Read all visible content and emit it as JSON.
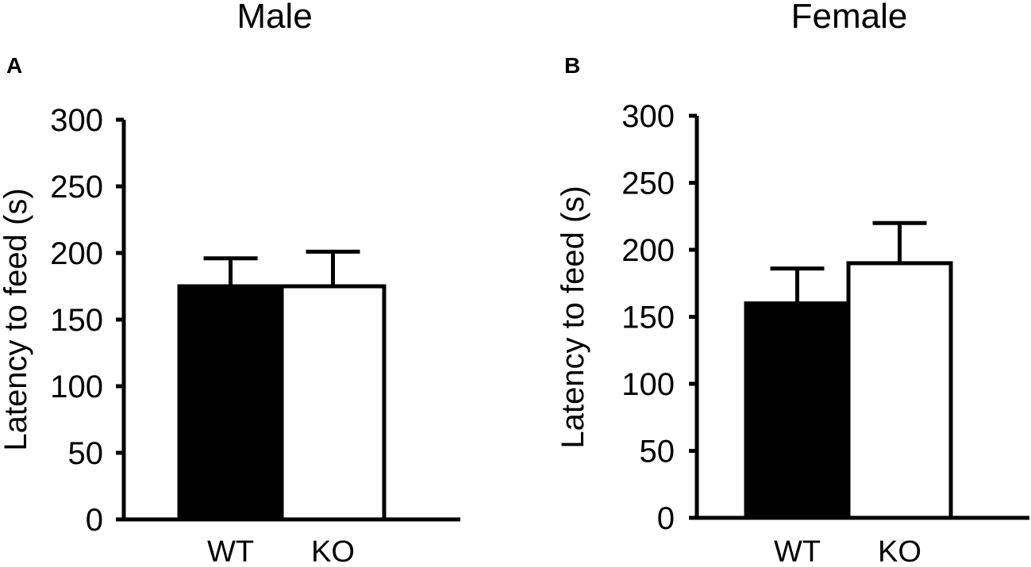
{
  "chart_data": [
    {
      "type": "bar",
      "panel": "A",
      "title": "Male",
      "ylabel": "Latency to feed (s)",
      "xlabel": "",
      "categories": [
        "WT",
        "KO"
      ],
      "values": [
        175,
        175
      ],
      "errors": [
        21,
        26
      ],
      "fills": [
        "#000000",
        "#ffffff"
      ],
      "ylim": [
        0,
        300
      ],
      "yticks": [
        0,
        50,
        100,
        150,
        200,
        250,
        300
      ],
      "grid": false
    },
    {
      "type": "bar",
      "panel": "B",
      "title": "Female",
      "ylabel": "Latency to feed (s)",
      "xlabel": "",
      "categories": [
        "WT",
        "KO"
      ],
      "values": [
        160,
        190
      ],
      "errors": [
        26,
        30
      ],
      "fills": [
        "#000000",
        "#ffffff"
      ],
      "ylim": [
        0,
        300
      ],
      "yticks": [
        0,
        50,
        100,
        150,
        200,
        250,
        300
      ],
      "grid": false
    }
  ]
}
